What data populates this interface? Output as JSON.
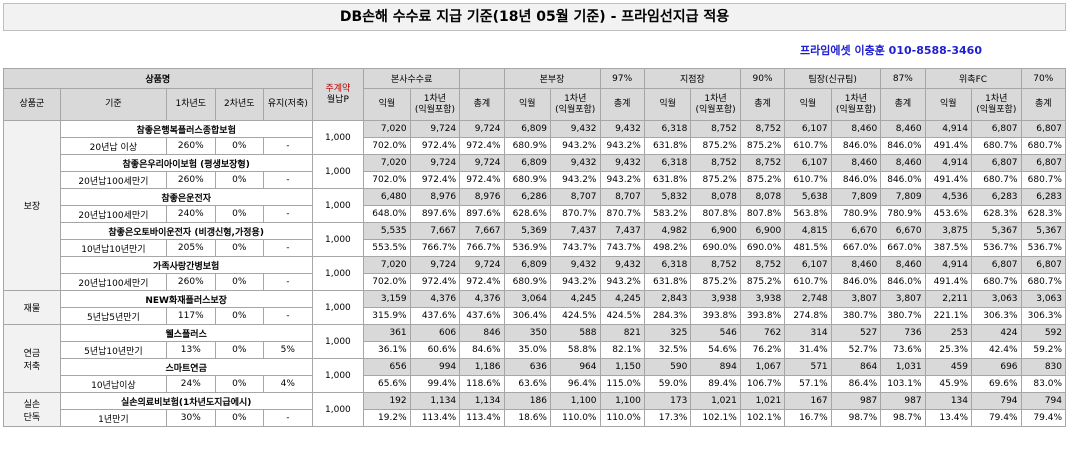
{
  "title": "DB손해 수수료 지급 기준(18년 05월 기준) - 프라임선지급 적용",
  "contact": "프라임에셋 이충훈 010-8588-3460",
  "header": {
    "product_name": "상품명",
    "monthly_premium_top": "주계약",
    "monthly_premium_bottom": "월납P",
    "col_group": "상품군",
    "col_basis": "기준",
    "col_y1": "1차년도",
    "col_y2": "2차년도",
    "col_maint": "유지(저축)",
    "channels": [
      {
        "name": "본사수수료",
        "pct": ""
      },
      {
        "name": "본부장",
        "pct": "97%"
      },
      {
        "name": "지점장",
        "pct": "90%"
      },
      {
        "name": "팀장(신규팀)",
        "pct": "87%"
      },
      {
        "name": "위촉FC",
        "pct": "70%"
      }
    ],
    "sub_cols": [
      "익월",
      "1차년\n(익월포함)",
      "총계"
    ]
  },
  "groups": [
    {
      "name": "보장",
      "rows": [
        0,
        1,
        2,
        3,
        4
      ]
    },
    {
      "name": "재물",
      "rows": [
        5
      ]
    },
    {
      "name": "연금\n저축",
      "rows": [
        6,
        7
      ]
    },
    {
      "name": "실손\n단독",
      "rows": [
        8
      ]
    }
  ],
  "products": [
    {
      "name": "참좋은행복플러스종합보험",
      "basis": "20년납 이상",
      "y1": "260%",
      "y2": "0%",
      "maint": "-",
      "premium": "1,000",
      "a": [
        "7,020",
        "9,724",
        "9,724",
        "6,809",
        "9,432",
        "9,432",
        "6,318",
        "8,752",
        "8,752",
        "6,107",
        "8,460",
        "8,460",
        "4,914",
        "6,807",
        "6,807"
      ],
      "b": [
        "702.0%",
        "972.4%",
        "972.4%",
        "680.9%",
        "943.2%",
        "943.2%",
        "631.8%",
        "875.2%",
        "875.2%",
        "610.7%",
        "846.0%",
        "846.0%",
        "491.4%",
        "680.7%",
        "680.7%"
      ]
    },
    {
      "name": "참좋은우리아이보험 (평생보장형)",
      "basis": "20년납100세만기",
      "y1": "260%",
      "y2": "0%",
      "maint": "-",
      "premium": "1,000",
      "a": [
        "7,020",
        "9,724",
        "9,724",
        "6,809",
        "9,432",
        "9,432",
        "6,318",
        "8,752",
        "8,752",
        "6,107",
        "8,460",
        "8,460",
        "4,914",
        "6,807",
        "6,807"
      ],
      "b": [
        "702.0%",
        "972.4%",
        "972.4%",
        "680.9%",
        "943.2%",
        "943.2%",
        "631.8%",
        "875.2%",
        "875.2%",
        "610.7%",
        "846.0%",
        "846.0%",
        "491.4%",
        "680.7%",
        "680.7%"
      ]
    },
    {
      "name": "참좋은운전자",
      "basis": "20년납100세만기",
      "y1": "240%",
      "y2": "0%",
      "maint": "-",
      "premium": "1,000",
      "a": [
        "6,480",
        "8,976",
        "8,976",
        "6,286",
        "8,707",
        "8,707",
        "5,832",
        "8,078",
        "8,078",
        "5,638",
        "7,809",
        "7,809",
        "4,536",
        "6,283",
        "6,283"
      ],
      "b": [
        "648.0%",
        "897.6%",
        "897.6%",
        "628.6%",
        "870.7%",
        "870.7%",
        "583.2%",
        "807.8%",
        "807.8%",
        "563.8%",
        "780.9%",
        "780.9%",
        "453.6%",
        "628.3%",
        "628.3%"
      ]
    },
    {
      "name": "참좋은오토바이운전자 (비갱신형,가정용)",
      "basis": "10년납10년만기",
      "y1": "205%",
      "y2": "0%",
      "maint": "-",
      "premium": "1,000",
      "a": [
        "5,535",
        "7,667",
        "7,667",
        "5,369",
        "7,437",
        "7,437",
        "4,982",
        "6,900",
        "6,900",
        "4,815",
        "6,670",
        "6,670",
        "3,875",
        "5,367",
        "5,367"
      ],
      "b": [
        "553.5%",
        "766.7%",
        "766.7%",
        "536.9%",
        "743.7%",
        "743.7%",
        "498.2%",
        "690.0%",
        "690.0%",
        "481.5%",
        "667.0%",
        "667.0%",
        "387.5%",
        "536.7%",
        "536.7%"
      ]
    },
    {
      "name": "가족사랑간병보험",
      "basis": "20년납100세만기",
      "y1": "260%",
      "y2": "0%",
      "maint": "-",
      "premium": "1,000",
      "a": [
        "7,020",
        "9,724",
        "9,724",
        "6,809",
        "9,432",
        "9,432",
        "6,318",
        "8,752",
        "8,752",
        "6,107",
        "8,460",
        "8,460",
        "4,914",
        "6,807",
        "6,807"
      ],
      "b": [
        "702.0%",
        "972.4%",
        "972.4%",
        "680.9%",
        "943.2%",
        "943.2%",
        "631.8%",
        "875.2%",
        "875.2%",
        "610.7%",
        "846.0%",
        "846.0%",
        "491.4%",
        "680.7%",
        "680.7%"
      ]
    },
    {
      "name": "NEW화재플러스보장",
      "basis": "5년납5년만기",
      "y1": "117%",
      "y2": "0%",
      "maint": "-",
      "premium": "1,000",
      "a": [
        "3,159",
        "4,376",
        "4,376",
        "3,064",
        "4,245",
        "4,245",
        "2,843",
        "3,938",
        "3,938",
        "2,748",
        "3,807",
        "3,807",
        "2,211",
        "3,063",
        "3,063"
      ],
      "b": [
        "315.9%",
        "437.6%",
        "437.6%",
        "306.4%",
        "424.5%",
        "424.5%",
        "284.3%",
        "393.8%",
        "393.8%",
        "274.8%",
        "380.7%",
        "380.7%",
        "221.1%",
        "306.3%",
        "306.3%"
      ]
    },
    {
      "name": "웰스플러스",
      "basis": "5년납10년만기",
      "y1": "13%",
      "y2": "0%",
      "maint": "5%",
      "premium": "1,000",
      "a": [
        "361",
        "606",
        "846",
        "350",
        "588",
        "821",
        "325",
        "546",
        "762",
        "314",
        "527",
        "736",
        "253",
        "424",
        "592"
      ],
      "b": [
        "36.1%",
        "60.6%",
        "84.6%",
        "35.0%",
        "58.8%",
        "82.1%",
        "32.5%",
        "54.6%",
        "76.2%",
        "31.4%",
        "52.7%",
        "73.6%",
        "25.3%",
        "42.4%",
        "59.2%"
      ]
    },
    {
      "name": "스마트연금",
      "basis": "10년납이상",
      "y1": "24%",
      "y2": "0%",
      "maint": "4%",
      "premium": "1,000",
      "a": [
        "656",
        "994",
        "1,186",
        "636",
        "964",
        "1,150",
        "590",
        "894",
        "1,067",
        "571",
        "864",
        "1,031",
        "459",
        "696",
        "830"
      ],
      "b": [
        "65.6%",
        "99.4%",
        "118.6%",
        "63.6%",
        "96.4%",
        "115.0%",
        "59.0%",
        "89.4%",
        "106.7%",
        "57.1%",
        "86.4%",
        "103.1%",
        "45.9%",
        "69.6%",
        "83.0%"
      ]
    },
    {
      "name": "실손의료비보험(1차년도지급에시)",
      "basis": "1년만기",
      "y1": "30%",
      "y2": "0%",
      "maint": "-",
      "premium": "1,000",
      "a": [
        "192",
        "1,134",
        "1,134",
        "186",
        "1,100",
        "1,100",
        "173",
        "1,021",
        "1,021",
        "167",
        "987",
        "987",
        "134",
        "794",
        "794"
      ],
      "b": [
        "19.2%",
        "113.4%",
        "113.4%",
        "18.6%",
        "110.0%",
        "110.0%",
        "17.3%",
        "102.1%",
        "102.1%",
        "16.7%",
        "98.7%",
        "98.7%",
        "13.4%",
        "79.4%",
        "79.4%"
      ]
    }
  ]
}
